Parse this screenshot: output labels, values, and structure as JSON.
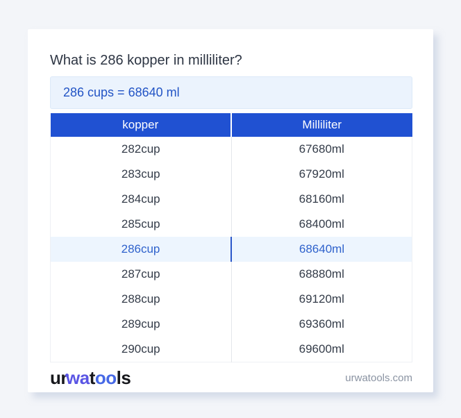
{
  "page": {
    "title": "What is 286 kopper in milliliter?"
  },
  "answer": {
    "text": "286 cups = 68640 ml"
  },
  "table": {
    "headers": [
      "kopper",
      "Milliliter"
    ],
    "rows": [
      {
        "kopper": "282cup",
        "milliliter": "67680ml",
        "highlighted": false
      },
      {
        "kopper": "283cup",
        "milliliter": "67920ml",
        "highlighted": false
      },
      {
        "kopper": "284cup",
        "milliliter": "68160ml",
        "highlighted": false
      },
      {
        "kopper": "285cup",
        "milliliter": "68400ml",
        "highlighted": false
      },
      {
        "kopper": "286cup",
        "milliliter": "68640ml",
        "highlighted": true
      },
      {
        "kopper": "287cup",
        "milliliter": "68880ml",
        "highlighted": false
      },
      {
        "kopper": "288cup",
        "milliliter": "69120ml",
        "highlighted": false
      },
      {
        "kopper": "289cup",
        "milliliter": "69360ml",
        "highlighted": false
      },
      {
        "kopper": "290cup",
        "milliliter": "69600ml",
        "highlighted": false
      }
    ]
  },
  "footer": {
    "logo": {
      "part1": "ur",
      "part2": "wa",
      "part3": "t",
      "part4": "oo",
      "part5": "ls"
    },
    "domain": "urwatools.com"
  },
  "colors": {
    "header_bg": "#2051d2",
    "highlight_bg": "#edf5fe",
    "highlight_text": "#2f62cc",
    "answer_bg": "#ebf3fd",
    "answer_text": "#2254c5",
    "logo_blue": "#5a55e4",
    "logo_blue2": "#4769e6",
    "page_bg": "#f3f5f9"
  }
}
